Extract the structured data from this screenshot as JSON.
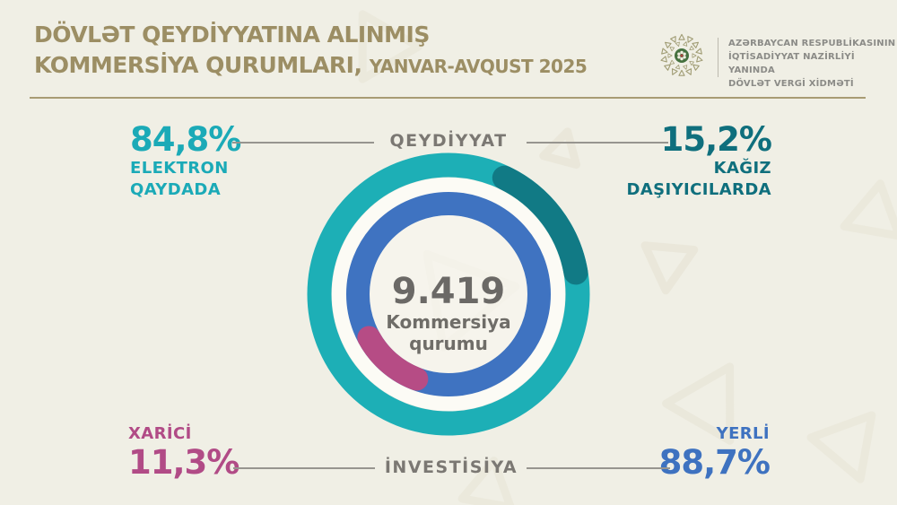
{
  "header": {
    "title_line1": "DÖVLƏT QEYDİYYATINA ALINMIŞ",
    "title_line2": "KOMMERSİYA QURUMLARI,",
    "title_period": "YANVAR-AVQUST 2025",
    "agency_line1": "AZƏRBAYCAN RESPUBLİKASININ",
    "agency_line2": "İQTİSADİYYAT NAZİRLİYİ YANINDA",
    "agency_line3": "DÖVLƏT VERGİ XİDMƏTİ"
  },
  "chart_data": {
    "type": "pie",
    "subtype": "double-ring-donut",
    "center_value": "9.419",
    "center_label": "Kommersiya qurumu",
    "rings": [
      {
        "name": "QEYDİYYAT",
        "position": "outer",
        "segments": [
          {
            "label": "ELEKTRON QAYDADA",
            "value": 84.8,
            "color": "#1dafb6"
          },
          {
            "label": "KAĞIZ DAŞIYICILARDA",
            "value": 15.2,
            "color": "#117a85"
          }
        ]
      },
      {
        "name": "İNVESTİSİYA",
        "position": "inner",
        "segments": [
          {
            "label": "YERLİ",
            "value": 88.7,
            "color": "#3f73c1"
          },
          {
            "label": "XARİCİ",
            "value": 11.3,
            "color": "#b64c85"
          }
        ]
      }
    ]
  },
  "callouts": {
    "top_left": {
      "value": "84,8%",
      "label1": "ELEKTRON",
      "label2": "QAYDADA",
      "color": "#1baab7"
    },
    "top_center": "QEYDİYYAT",
    "top_right": {
      "value": "15,2%",
      "label1": "KAĞIZ",
      "label2": "DAŞIYICILARDA",
      "color": "#0f6f7d"
    },
    "bottom_left": {
      "label": "XARİCİ",
      "value": "11,3%",
      "color": "#b14b86"
    },
    "bottom_center": "İNVESTİSİYA",
    "bottom_right": {
      "label": "YERLİ",
      "value": "88,7%",
      "color": "#3e72c0"
    }
  },
  "colors": {
    "background": "#f0efe5",
    "pattern": "#e7e4d6",
    "title": "#9c8e64",
    "rule": "#a89c74",
    "gray_label": "#7b7873",
    "center_text": "#6b6966"
  }
}
